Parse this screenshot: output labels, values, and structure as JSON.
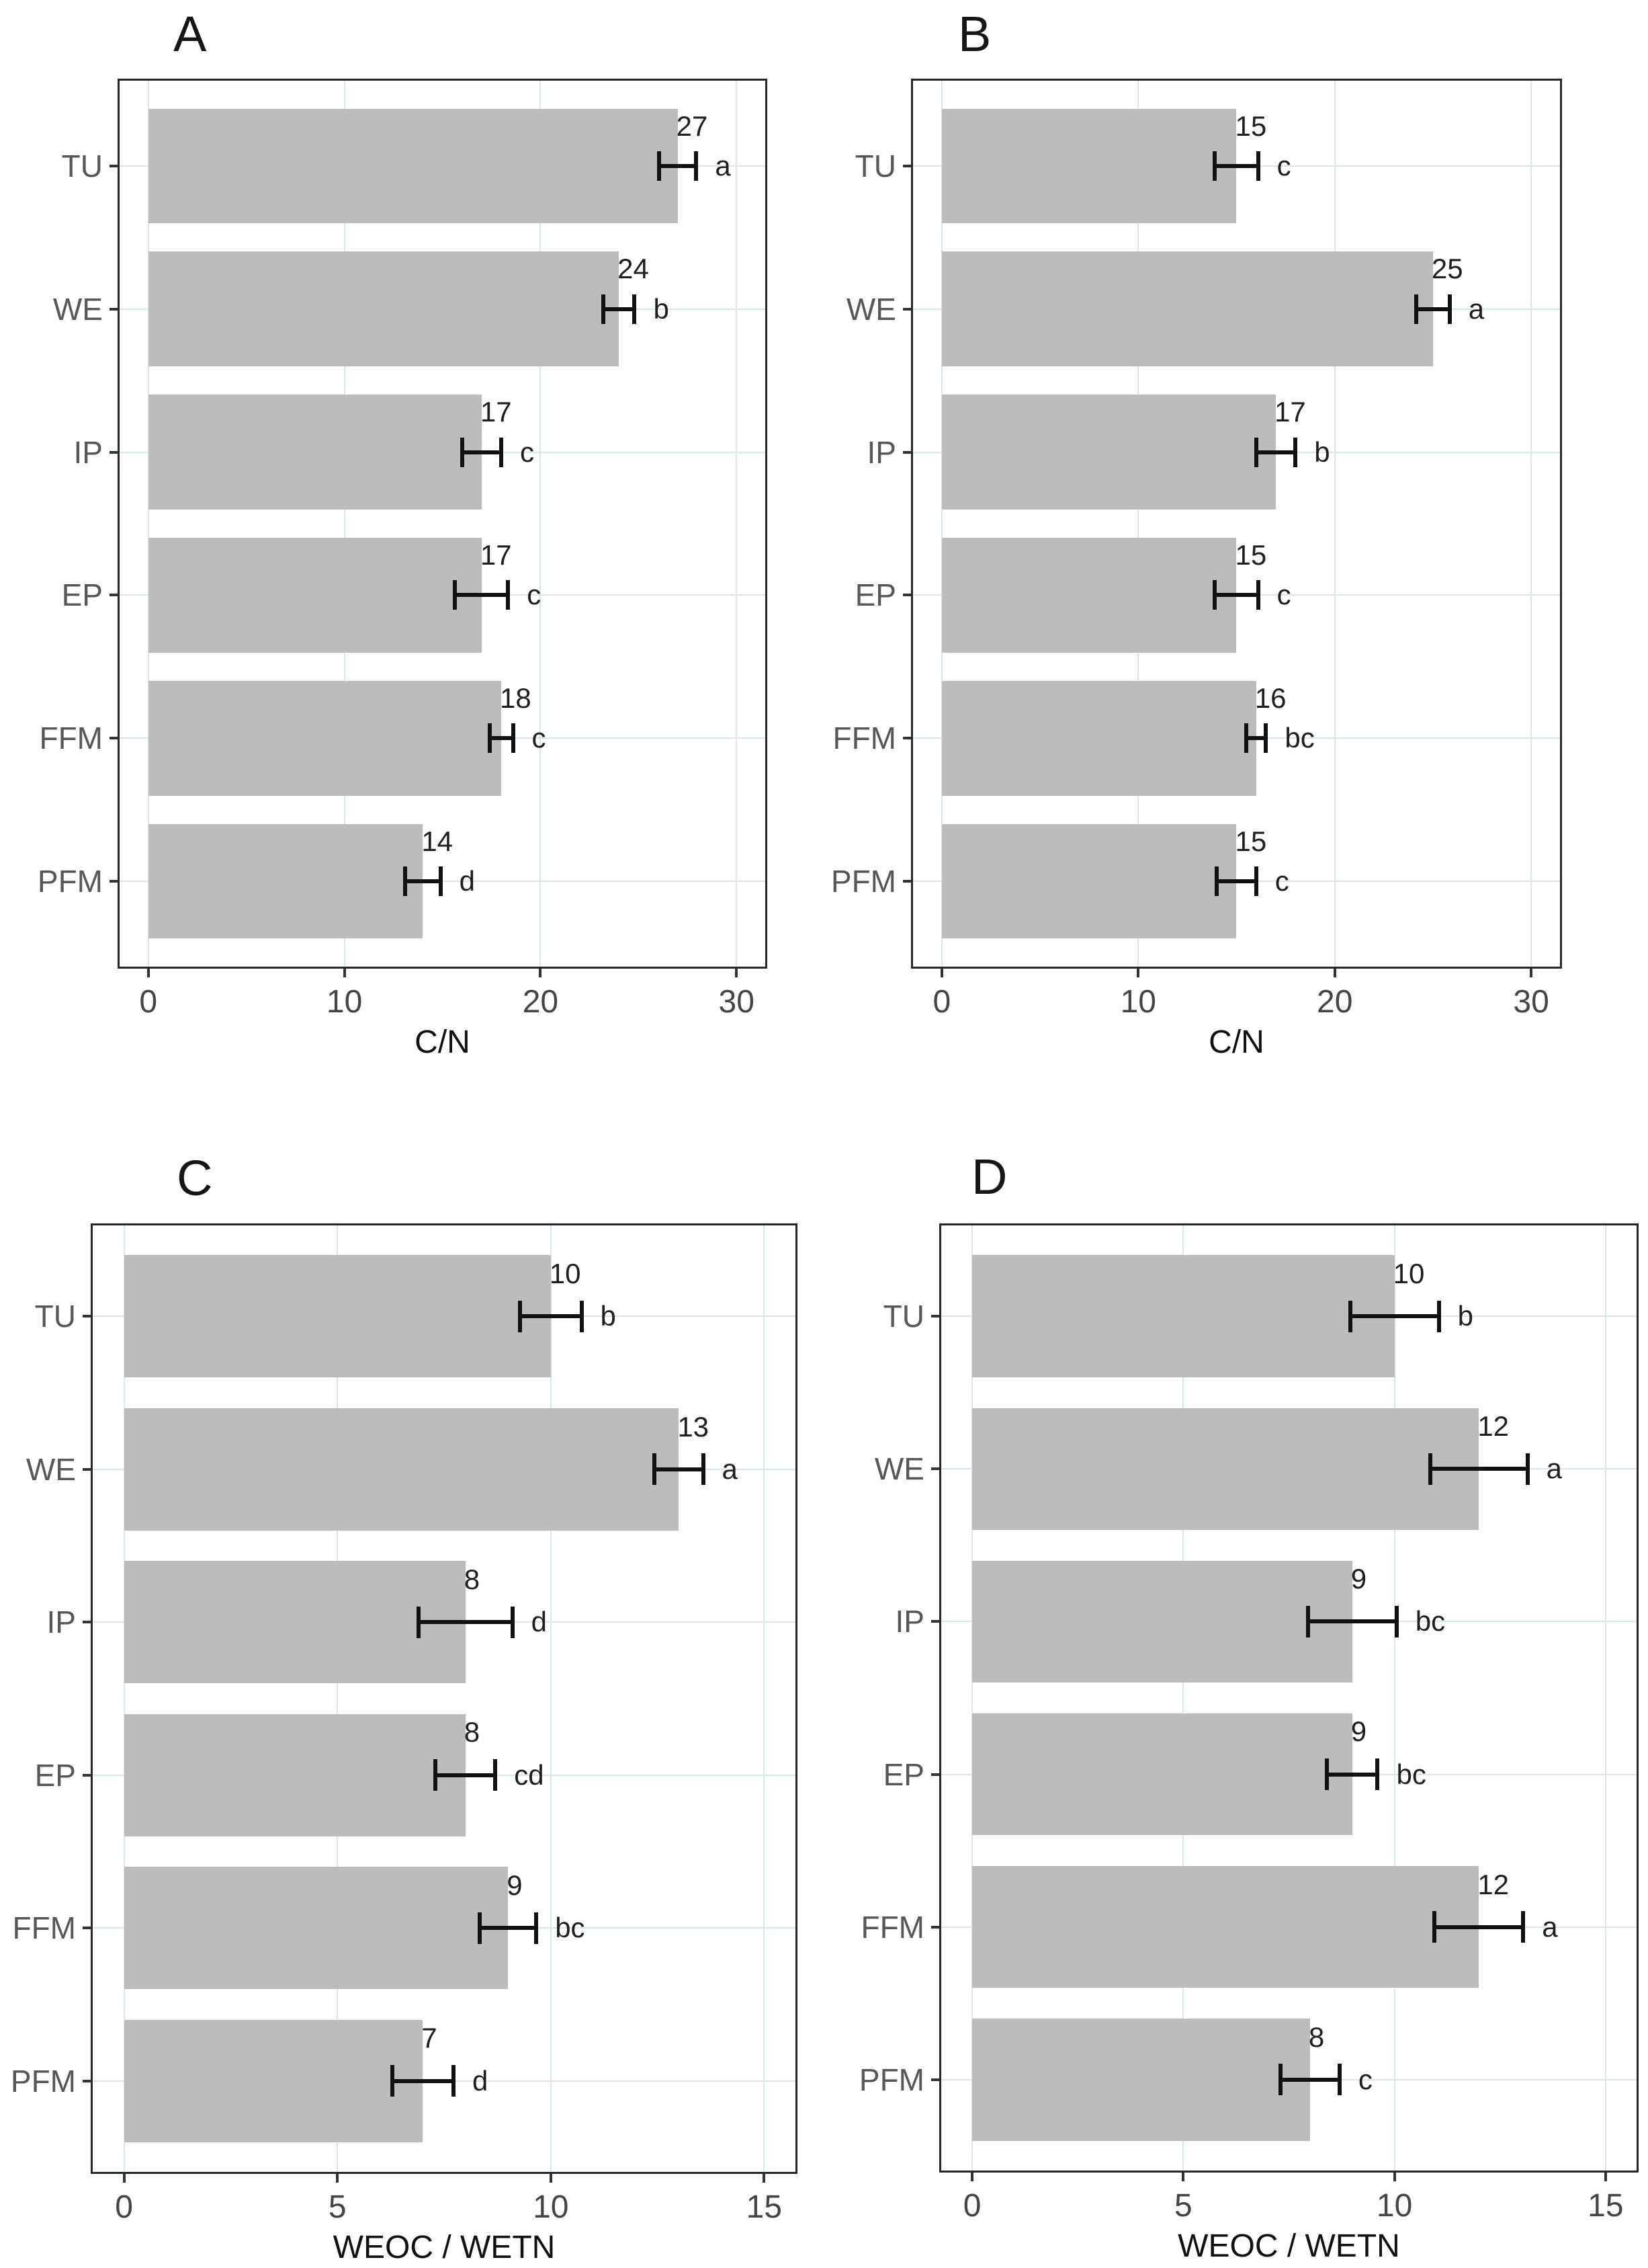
{
  "figure": {
    "bar_color": "#bcbcbc",
    "gridline_color": "#dbe7e3",
    "border_color": "#272727",
    "error_bar_color": "#111111"
  },
  "chart_data": [
    {
      "type": "bar",
      "orientation": "horizontal",
      "title": "A",
      "xlabel": "C/N",
      "categories": [
        "TU",
        "WE",
        "IP",
        "EP",
        "FFM",
        "PFM"
      ],
      "values": [
        27,
        24,
        17,
        17,
        18,
        14
      ],
      "errors": [
        0.95,
        0.8,
        1.0,
        1.35,
        0.6,
        0.9
      ],
      "letters": [
        "a",
        "b",
        "c",
        "c",
        "c",
        "d"
      ],
      "x_ticks": [
        0,
        10,
        20,
        30
      ],
      "xlim": [
        -1.5,
        31.5
      ],
      "grid": true,
      "legend": "none"
    },
    {
      "type": "bar",
      "orientation": "horizontal",
      "title": "B",
      "xlabel": "C/N",
      "categories": [
        "TU",
        "WE",
        "IP",
        "EP",
        "FFM",
        "PFM"
      ],
      "values": [
        15,
        25,
        17,
        15,
        16,
        15
      ],
      "errors": [
        1.1,
        0.85,
        1.0,
        1.1,
        0.5,
        1.0
      ],
      "letters": [
        "c",
        "a",
        "b",
        "c",
        "bc",
        "c"
      ],
      "x_ticks": [
        0,
        10,
        20,
        30
      ],
      "xlim": [
        -1.5,
        31.5
      ],
      "grid": true,
      "legend": "none"
    },
    {
      "type": "bar",
      "orientation": "horizontal",
      "title": "C",
      "xlabel": "WEOC / WETN",
      "categories": [
        "TU",
        "WE",
        "IP",
        "EP",
        "FFM",
        "PFM"
      ],
      "values": [
        10,
        13,
        8,
        8,
        9,
        7
      ],
      "errors": [
        0.72,
        0.57,
        1.1,
        0.7,
        0.66,
        0.72
      ],
      "letters": [
        "b",
        "a",
        "d",
        "cd",
        "bc",
        "d"
      ],
      "x_ticks": [
        0,
        5,
        10,
        15
      ],
      "xlim": [
        -0.75,
        15.75
      ],
      "grid": true,
      "legend": "none"
    },
    {
      "type": "bar",
      "orientation": "horizontal",
      "title": "D",
      "xlabel": "WEOC / WETN",
      "categories": [
        "TU",
        "WE",
        "IP",
        "EP",
        "FFM",
        "PFM"
      ],
      "values": [
        10,
        12,
        9,
        9,
        12,
        8
      ],
      "errors": [
        1.05,
        1.15,
        1.05,
        0.6,
        1.05,
        0.7
      ],
      "letters": [
        "b",
        "a",
        "bc",
        "bc",
        "a",
        "c"
      ],
      "x_ticks": [
        0,
        5,
        10,
        15
      ],
      "xlim": [
        -0.75,
        15.75
      ],
      "grid": true,
      "legend": "none"
    }
  ]
}
